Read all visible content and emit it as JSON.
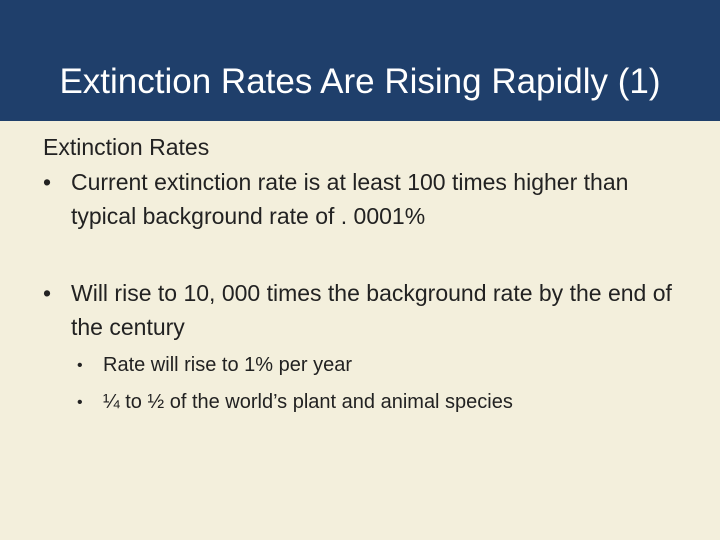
{
  "slide": {
    "title": "Extinction Rates Are Rising Rapidly (1)",
    "heading": "Extinction Rates",
    "bullet_symbol": "•",
    "bullets": [
      {
        "text": "Current extinction rate is at least 100 times higher than typical background rate of . 0001%"
      },
      {
        "text": "Will rise to 10, 000 times the background rate by the end of the century",
        "sub_bullets": [
          {
            "text": "Rate will rise to 1% per year"
          },
          {
            "text": "¼ to ½ of the world’s plant and animal species"
          }
        ]
      }
    ]
  },
  "colors": {
    "title_bar": "#1f3f6b",
    "title_text": "#ffffff",
    "background": "#f3efdc",
    "body_text": "#222222"
  }
}
